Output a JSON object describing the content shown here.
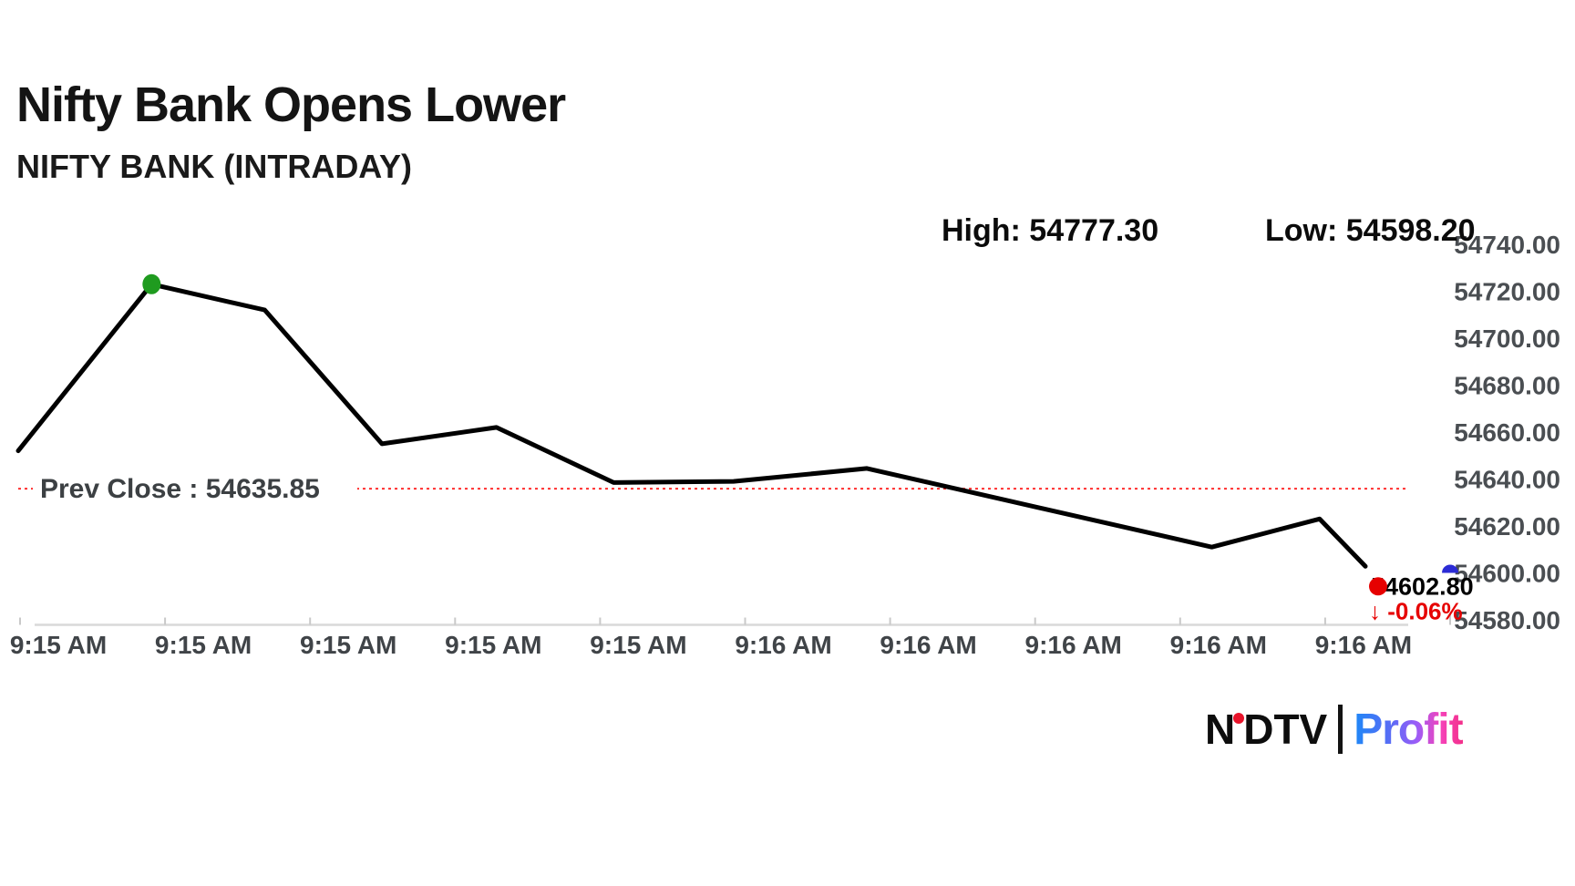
{
  "header": {
    "title": "Nifty Bank Opens Lower",
    "subtitle": "NIFTY BANK (INTRADAY)",
    "high_label": "High: 54777.30",
    "low_label": "Low: 54598.20"
  },
  "chart_data": {
    "type": "line",
    "title": "NIFTY BANK (INTRADAY)",
    "grid": false,
    "legend": false,
    "x_axis_position": "bottom",
    "y_axis_position": "right",
    "x_tick_labels": [
      "9:15 AM",
      "9:15 AM",
      "9:15 AM",
      "9:15 AM",
      "9:15 AM",
      "9:16 AM",
      "9:16 AM",
      "9:16 AM",
      "9:16 AM",
      "9:16 AM"
    ],
    "y_tick_labels": [
      "54740.00",
      "54720.00",
      "54700.00",
      "54680.00",
      "54660.00",
      "54640.00",
      "54620.00",
      "54600.00",
      "54580.00"
    ],
    "y_ticks": [
      54740,
      54720,
      54700,
      54680,
      54660,
      54640,
      54620,
      54600,
      54580
    ],
    "ylim": [
      54580,
      54740
    ],
    "series": [
      {
        "name": "NIFTY BANK",
        "color": "#000000",
        "stroke_width": 5,
        "points": [
          [
            0.0,
            54652
          ],
          [
            0.099,
            54723
          ],
          [
            0.183,
            54712
          ],
          [
            0.27,
            54655
          ],
          [
            0.355,
            54662
          ],
          [
            0.442,
            54638.5
          ],
          [
            0.531,
            54639
          ],
          [
            0.63,
            54644.5
          ],
          [
            0.886,
            54611
          ],
          [
            0.966,
            54623
          ],
          [
            1.0,
            54602.8
          ]
        ]
      }
    ],
    "prev_close": {
      "label": "Prev Close : 54635.85",
      "value": 54635.85,
      "line_color": "#ff2e2e",
      "text_color": "#3c4043"
    },
    "last": {
      "price_label": "54602.80",
      "change_label": "↓ -0.06%",
      "value": 54602.8,
      "dot_color": "#e60000",
      "price_color": "#000000",
      "change_color": "#e60000"
    },
    "markers": {
      "peak_dot": {
        "point_index": 1,
        "color": "#1f9b1f"
      },
      "edge_dot": {
        "value": 54600,
        "color": "#2b2bd5"
      }
    },
    "high": 54777.3,
    "low": 54598.2,
    "axis_color": "#d9d9d9",
    "tick_color": "#c9c9c9",
    "y_label_color": "#4a4e52",
    "x_label_color": "#404448"
  },
  "footer": {
    "brand_left": "NDTV",
    "brand_right": "Profit"
  }
}
